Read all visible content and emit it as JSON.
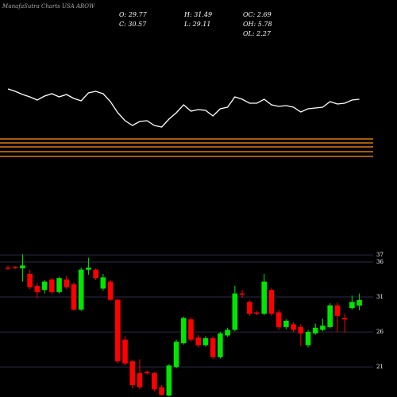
{
  "header": {
    "title": "MunafaSutra Charts USA AROW",
    "stats": [
      {
        "label": "O:",
        "value": 29.77
      },
      {
        "label": "H:",
        "value": 31.49
      },
      {
        "label": "OC:",
        "value": 2.69
      },
      {
        "label": "C:",
        "value": 30.57
      },
      {
        "label": "L:",
        "value": 29.11
      },
      {
        "label": "OH:",
        "value": 5.78
      },
      {
        "label": "OL:",
        "value": 2.27
      }
    ]
  },
  "chart_data": [
    {
      "type": "line",
      "color": "#ffffff",
      "ylim": [
        0,
        70
      ],
      "values": [
        58,
        55,
        51,
        48,
        44,
        49,
        52,
        48,
        51,
        46,
        43,
        53,
        55,
        52,
        42,
        28,
        18,
        12,
        17,
        18,
        12,
        10,
        20,
        28,
        38,
        30,
        32,
        31,
        24,
        33,
        35,
        48,
        45,
        40,
        40,
        45,
        38,
        36,
        37,
        35,
        29,
        33,
        34,
        35,
        42,
        39,
        40,
        44,
        45
      ]
    },
    {
      "type": "levels",
      "color": "#e07a10",
      "ylim": [
        0,
        30
      ],
      "values": [
        25,
        20,
        15,
        9,
        3
      ]
    },
    {
      "type": "candlestick",
      "up_color": "#00e600",
      "down_color": "#ff0000",
      "grid": true,
      "ylim": [
        16.7,
        37.7
      ],
      "yticks": [
        37,
        36,
        31,
        26,
        21
      ],
      "open": [
        35.2,
        35.3,
        35.1,
        34.3,
        32.6,
        32.0,
        33.5,
        31.7,
        33.5,
        32.8,
        29.2,
        34.9,
        34.9,
        32.2,
        33.2,
        30.6,
        24.9,
        21.8,
        20.1,
        20.3,
        20.1,
        18.1,
        16.9,
        21.0,
        24.4,
        27.8,
        25.2,
        24.1,
        25.1,
        22.4,
        25.5,
        26.3,
        31.5,
        30.3,
        28.8,
        28.6,
        32.0,
        28.8,
        26.7,
        27.1,
        26.7,
        24.1,
        25.8,
        26.3,
        26.7,
        29.8,
        28.0,
        29.4,
        29.77
      ],
      "high": [
        35.5,
        35.4,
        37.1,
        34.9,
        33.0,
        33.4,
        33.7,
        33.9,
        34.0,
        33.1,
        35.2,
        36.6,
        35.1,
        34.3,
        33.4,
        30.8,
        25.4,
        22.0,
        22.1,
        20.5,
        20.3,
        18.4,
        21.4,
        24.9,
        28.2,
        28.1,
        25.6,
        25.4,
        25.4,
        26.0,
        26.6,
        32.6,
        32.0,
        30.5,
        29.0,
        34.3,
        32.3,
        29.2,
        27.8,
        27.4,
        27.1,
        26.3,
        27.2,
        27.9,
        30.1,
        30.2,
        28.6,
        31.2,
        31.49
      ],
      "low": [
        34.9,
        35.0,
        33.2,
        32.1,
        30.8,
        31.5,
        31.4,
        31.5,
        32.1,
        29.0,
        29.0,
        34.2,
        33.4,
        31.9,
        30.4,
        21.5,
        21.2,
        17.9,
        17.8,
        19.9,
        17.5,
        16.9,
        16.8,
        20.8,
        24.2,
        24.6,
        23.8,
        23.9,
        22.1,
        22.2,
        25.3,
        26.1,
        30.9,
        28.3,
        28.4,
        28.4,
        28.3,
        26.3,
        26.4,
        26.0,
        24.0,
        23.8,
        25.6,
        26.1,
        26.5,
        26.0,
        25.9,
        29.2,
        29.11
      ],
      "close": [
        35.1,
        35.2,
        35.5,
        32.4,
        31.7,
        33.2,
        31.7,
        33.7,
        32.4,
        29.2,
        34.9,
        35.2,
        33.7,
        33.8,
        30.6,
        21.8,
        21.5,
        18.4,
        18.1,
        20.1,
        17.8,
        17.0,
        21.2,
        24.6,
        28.0,
        24.9,
        24.1,
        25.1,
        22.4,
        25.8,
        26.3,
        31.5,
        31.4,
        28.6,
        28.6,
        33.2,
        28.6,
        26.7,
        27.6,
        26.3,
        25.8,
        26.0,
        26.6,
        26.9,
        29.8,
        28.3,
        27.8,
        30.3,
        30.57
      ]
    }
  ]
}
